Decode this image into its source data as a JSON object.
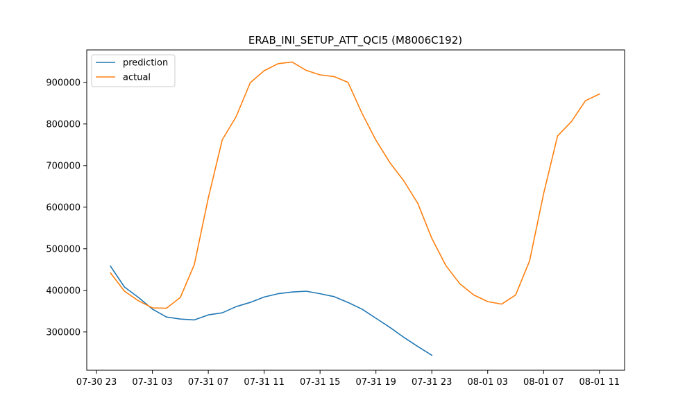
{
  "chart_data": {
    "type": "line",
    "title": "ERAB_INI_SETUP_ATT_QCI5 (M8006C192)",
    "xlabel": "",
    "ylabel": "",
    "x_unit": "hour",
    "x_ticks": [
      {
        "hour": 23,
        "label": "07-30 23"
      },
      {
        "hour": 27,
        "label": "07-31 03"
      },
      {
        "hour": 31,
        "label": "07-31 07"
      },
      {
        "hour": 35,
        "label": "07-31 11"
      },
      {
        "hour": 39,
        "label": "07-31 15"
      },
      {
        "hour": 43,
        "label": "07-31 19"
      },
      {
        "hour": 47,
        "label": "07-31 23"
      },
      {
        "hour": 51,
        "label": "08-01 03"
      },
      {
        "hour": 55,
        "label": "08-01 07"
      },
      {
        "hour": 59,
        "label": "08-01 11"
      }
    ],
    "y_ticks": [
      300000,
      400000,
      500000,
      600000,
      700000,
      800000,
      900000
    ],
    "xlim": [
      22.3,
      60.8
    ],
    "ylim": [
      208000,
      978000
    ],
    "grid": false,
    "legend": "top-left",
    "series": [
      {
        "name": "prediction",
        "color": "#1f77b4",
        "x": [
          24,
          25,
          26,
          27,
          28,
          29,
          30,
          31,
          32,
          33,
          34,
          35,
          36,
          37,
          38,
          39,
          40,
          41,
          42,
          43,
          44,
          45,
          46,
          47
        ],
        "y": [
          458000,
          408000,
          383000,
          355000,
          336000,
          331000,
          329000,
          341000,
          346000,
          361000,
          371000,
          384000,
          392000,
          396000,
          398000,
          392000,
          385000,
          371000,
          355000,
          333000,
          311000,
          287000,
          265000,
          244000
        ]
      },
      {
        "name": "actual",
        "color": "#ff7f0e",
        "x": [
          24,
          25,
          26,
          27,
          28,
          29,
          30,
          31,
          32,
          33,
          34,
          35,
          36,
          37,
          38,
          39,
          40,
          41,
          42,
          43,
          44,
          45,
          46,
          47,
          48,
          49,
          50,
          51,
          52,
          53,
          54,
          55,
          56,
          57,
          58,
          59
        ],
        "y": [
          442000,
          398000,
          375000,
          358000,
          357000,
          383000,
          462000,
          622000,
          762000,
          818000,
          899000,
          928000,
          945000,
          949000,
          929000,
          918000,
          914000,
          900000,
          826000,
          761000,
          707000,
          663000,
          609000,
          525000,
          460000,
          416000,
          389000,
          373000,
          367000,
          389000,
          471000,
          632000,
          771000,
          806000,
          856000,
          872000
        ]
      }
    ]
  }
}
